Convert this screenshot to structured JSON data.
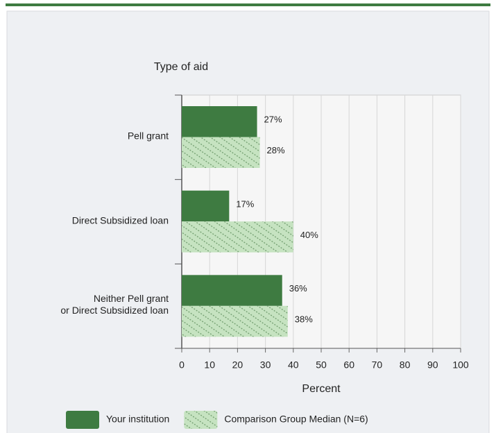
{
  "chart_data": {
    "type": "bar",
    "orientation": "horizontal",
    "title": "Type of aid",
    "xlabel": "Percent",
    "categories": [
      "Pell grant",
      "Direct Subsidized loan",
      "Neither Pell grant\nor Direct Subsidized loan"
    ],
    "series": [
      {
        "name": "Your institution",
        "color": "#3e7b41",
        "values": [
          27,
          17,
          36
        ],
        "value_labels": [
          "27%",
          "17%",
          "36%"
        ]
      },
      {
        "name": "Comparison Group Median (N=6)",
        "color": "#c6e3c1",
        "hatch": true,
        "values": [
          28,
          40,
          38
        ],
        "value_labels": [
          "28%",
          "40%",
          "38%"
        ]
      }
    ],
    "xlim": [
      0,
      100
    ],
    "xticks": [
      0,
      10,
      20,
      30,
      40,
      50,
      60,
      70,
      80,
      90,
      100
    ],
    "grid": true
  }
}
